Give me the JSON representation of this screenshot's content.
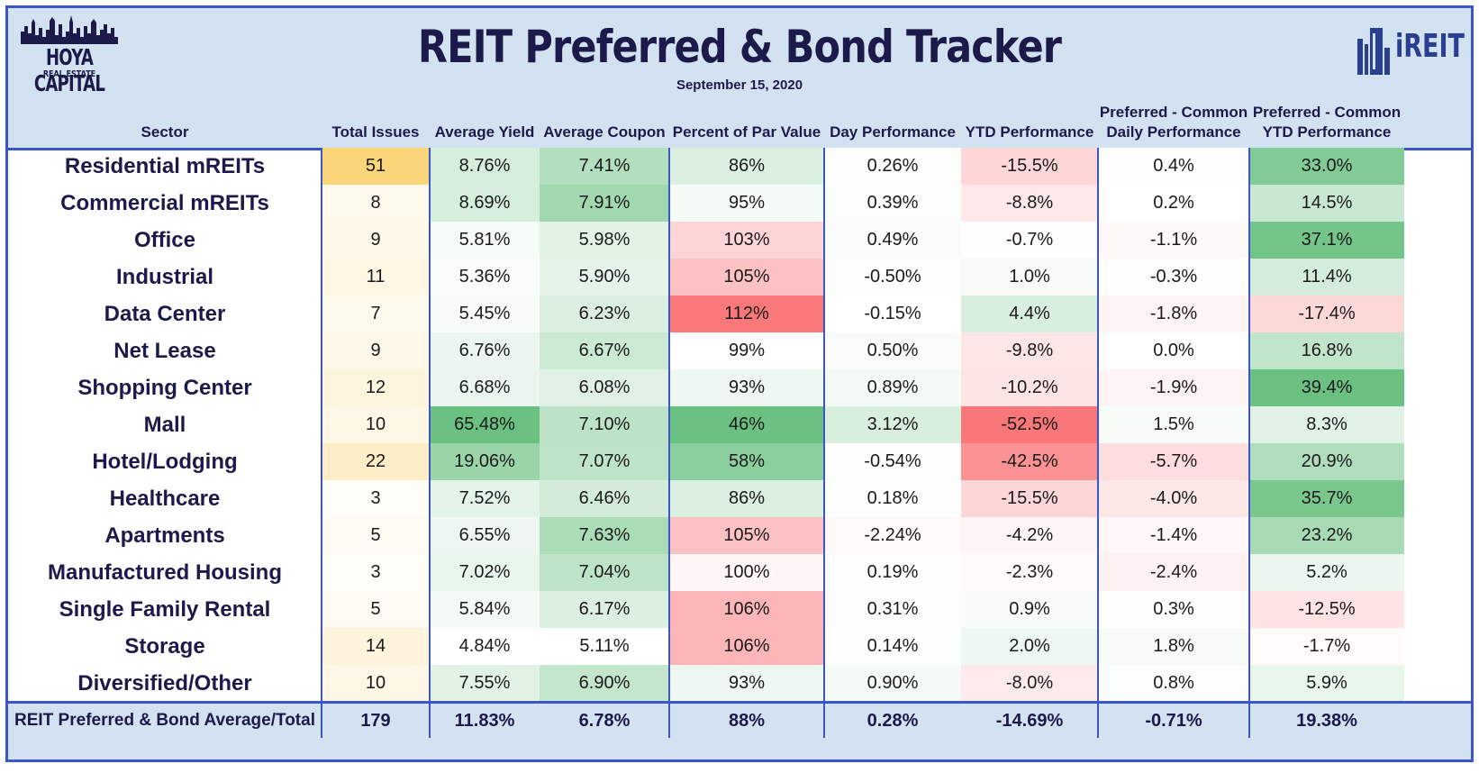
{
  "header": {
    "title": "REIT Preferred & Bond Tracker",
    "date": "September 15, 2020",
    "logo_left_line1": "HOYA CAPITAL",
    "logo_left_line2": "REAL ESTATE",
    "logo_right_text": "iREIT"
  },
  "columns": {
    "sector": "Sector",
    "total_issues": "Total Issues",
    "avg_yield": "Average Yield",
    "avg_coupon": "Average Coupon",
    "pct_par": "Percent of Par Value",
    "day_perf": "Day Performance",
    "ytd_perf": "YTD Performance",
    "pc_daily_1": "Preferred - Common",
    "pc_daily_2": "Daily Performance",
    "pc_ytd_1": "Preferred - Common",
    "pc_ytd_2": "YTD Performance"
  },
  "chart_data": {
    "type": "table",
    "title": "REIT Preferred & Bond Tracker",
    "subtitle": "September 15, 2020",
    "rows": [
      {
        "sector": "Residential mREITs",
        "total_issues": "51",
        "avg_yield": "8.76%",
        "avg_coupon": "7.41%",
        "pct_par": "86%",
        "day_perf": "0.26%",
        "ytd_perf": "-15.5%",
        "pc_daily": "0.4%",
        "pc_ytd": "33.0%"
      },
      {
        "sector": "Commercial mREITs",
        "total_issues": "8",
        "avg_yield": "8.69%",
        "avg_coupon": "7.91%",
        "pct_par": "95%",
        "day_perf": "0.39%",
        "ytd_perf": "-8.8%",
        "pc_daily": "0.2%",
        "pc_ytd": "14.5%"
      },
      {
        "sector": "Office",
        "total_issues": "9",
        "avg_yield": "5.81%",
        "avg_coupon": "5.98%",
        "pct_par": "103%",
        "day_perf": "0.49%",
        "ytd_perf": "-0.7%",
        "pc_daily": "-1.1%",
        "pc_ytd": "37.1%"
      },
      {
        "sector": "Industrial",
        "total_issues": "11",
        "avg_yield": "5.36%",
        "avg_coupon": "5.90%",
        "pct_par": "105%",
        "day_perf": "-0.50%",
        "ytd_perf": "1.0%",
        "pc_daily": "-0.3%",
        "pc_ytd": "11.4%"
      },
      {
        "sector": "Data Center",
        "total_issues": "7",
        "avg_yield": "5.45%",
        "avg_coupon": "6.23%",
        "pct_par": "112%",
        "day_perf": "-0.15%",
        "ytd_perf": "4.4%",
        "pc_daily": "-1.8%",
        "pc_ytd": "-17.4%"
      },
      {
        "sector": "Net Lease",
        "total_issues": "9",
        "avg_yield": "6.76%",
        "avg_coupon": "6.67%",
        "pct_par": "99%",
        "day_perf": "0.50%",
        "ytd_perf": "-9.8%",
        "pc_daily": "0.0%",
        "pc_ytd": "16.8%"
      },
      {
        "sector": "Shopping Center",
        "total_issues": "12",
        "avg_yield": "6.68%",
        "avg_coupon": "6.08%",
        "pct_par": "93%",
        "day_perf": "0.89%",
        "ytd_perf": "-10.2%",
        "pc_daily": "-1.9%",
        "pc_ytd": "39.4%"
      },
      {
        "sector": "Mall",
        "total_issues": "10",
        "avg_yield": "65.48%",
        "avg_coupon": "7.10%",
        "pct_par": "46%",
        "day_perf": "3.12%",
        "ytd_perf": "-52.5%",
        "pc_daily": "1.5%",
        "pc_ytd": "8.3%"
      },
      {
        "sector": "Hotel/Lodging",
        "total_issues": "22",
        "avg_yield": "19.06%",
        "avg_coupon": "7.07%",
        "pct_par": "58%",
        "day_perf": "-0.54%",
        "ytd_perf": "-42.5%",
        "pc_daily": "-5.7%",
        "pc_ytd": "20.9%"
      },
      {
        "sector": "Healthcare",
        "total_issues": "3",
        "avg_yield": "7.52%",
        "avg_coupon": "6.46%",
        "pct_par": "86%",
        "day_perf": "0.18%",
        "ytd_perf": "-15.5%",
        "pc_daily": "-4.0%",
        "pc_ytd": "35.7%"
      },
      {
        "sector": "Apartments",
        "total_issues": "5",
        "avg_yield": "6.55%",
        "avg_coupon": "7.63%",
        "pct_par": "105%",
        "day_perf": "-2.24%",
        "ytd_perf": "-4.2%",
        "pc_daily": "-1.4%",
        "pc_ytd": "23.2%"
      },
      {
        "sector": "Manufactured Housing",
        "total_issues": "3",
        "avg_yield": "7.02%",
        "avg_coupon": "7.04%",
        "pct_par": "100%",
        "day_perf": "0.19%",
        "ytd_perf": "-2.3%",
        "pc_daily": "-2.4%",
        "pc_ytd": "5.2%"
      },
      {
        "sector": "Single Family Rental",
        "total_issues": "5",
        "avg_yield": "5.84%",
        "avg_coupon": "6.17%",
        "pct_par": "106%",
        "day_perf": "0.31%",
        "ytd_perf": "0.9%",
        "pc_daily": "0.3%",
        "pc_ytd": "-12.5%"
      },
      {
        "sector": "Storage",
        "total_issues": "14",
        "avg_yield": "4.84%",
        "avg_coupon": "5.11%",
        "pct_par": "106%",
        "day_perf": "0.14%",
        "ytd_perf": "2.0%",
        "pc_daily": "1.8%",
        "pc_ytd": "-1.7%"
      },
      {
        "sector": "Diversified/Other",
        "total_issues": "10",
        "avg_yield": "7.55%",
        "avg_coupon": "6.90%",
        "pct_par": "93%",
        "day_perf": "0.90%",
        "ytd_perf": "-8.0%",
        "pc_daily": "0.8%",
        "pc_ytd": "5.9%"
      }
    ],
    "total": {
      "sector": "REIT Preferred & Bond Average/Total",
      "total_issues": "179",
      "avg_yield": "11.83%",
      "avg_coupon": "6.78%",
      "pct_par": "88%",
      "day_perf": "0.28%",
      "ytd_perf": "-14.69%",
      "pc_daily": "-0.71%",
      "pc_ytd": "19.38%"
    }
  },
  "colors": {
    "header_bg": "#d3e2f1",
    "border": "#3b56c9",
    "title_color": "#1c1a4a",
    "high_issues": "#fad57a",
    "positive_green": "#63be7b",
    "negative_red": "#f8696b"
  }
}
